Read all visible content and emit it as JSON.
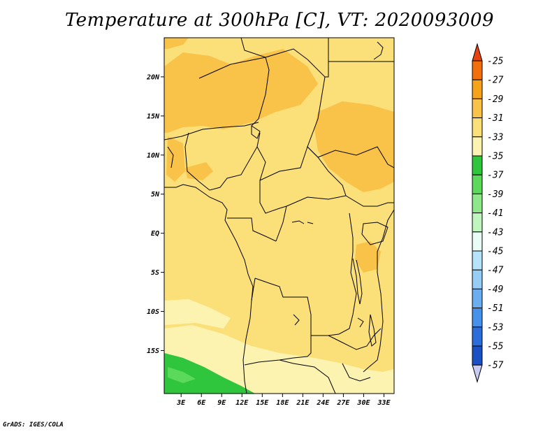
{
  "title": "Temperature at 300hPa [C], VT: 2020093009",
  "credit": "GrADS: IGES/COLA",
  "map": {
    "lat_range": [
      -20.5,
      25
    ],
    "lon_range": [
      0.5,
      34.5
    ],
    "y_ticks": [
      {
        "lat": 20,
        "label": "20N"
      },
      {
        "lat": 15,
        "label": "15N"
      },
      {
        "lat": 10,
        "label": "10N"
      },
      {
        "lat": 5,
        "label": "5N"
      },
      {
        "lat": 0,
        "label": "EQ"
      },
      {
        "lat": -5,
        "label": "5S"
      },
      {
        "lat": -10,
        "label": "10S"
      },
      {
        "lat": -15,
        "label": "15S"
      }
    ],
    "x_ticks": [
      {
        "lon": 3,
        "label": "3E"
      },
      {
        "lon": 6,
        "label": "6E"
      },
      {
        "lon": 9,
        "label": "9E"
      },
      {
        "lon": 12,
        "label": "12E"
      },
      {
        "lon": 15,
        "label": "15E"
      },
      {
        "lon": 18,
        "label": "18E"
      },
      {
        "lon": 21,
        "label": "21E"
      },
      {
        "lon": 24,
        "label": "24E"
      },
      {
        "lon": 27,
        "label": "27E"
      },
      {
        "lon": 30,
        "label": "30E"
      },
      {
        "lon": 33,
        "label": "33E"
      }
    ]
  },
  "colorbar": {
    "labels": [
      "-25",
      "-27",
      "-29",
      "-31",
      "-33",
      "-35",
      "-37",
      "-39",
      "-41",
      "-43",
      "-45",
      "-47",
      "-49",
      "-51",
      "-53",
      "-55",
      "-57"
    ],
    "colors": [
      "#e8420f",
      "#f26f0b",
      "#f6a31a",
      "#f9c248",
      "#fbdf79",
      "#fcf3b0",
      "#2fc63d",
      "#5bd95b",
      "#8ee88a",
      "#bff6bd",
      "#e9fdf7",
      "#b7e3fa",
      "#95cdf4",
      "#6aaeef",
      "#4692eb",
      "#2a6ddb",
      "#1b50c4",
      "#0f349e",
      "#c8cbf4"
    ],
    "top_arrow_color": "#e8420f",
    "bottom_arrow_color": "#c8cbf4"
  },
  "shading": {
    "base_color": "#fbdf79",
    "warm_color": "#f9c248",
    "cool_color": "#fcf3b0",
    "cold_color": "#2fc63d"
  }
}
